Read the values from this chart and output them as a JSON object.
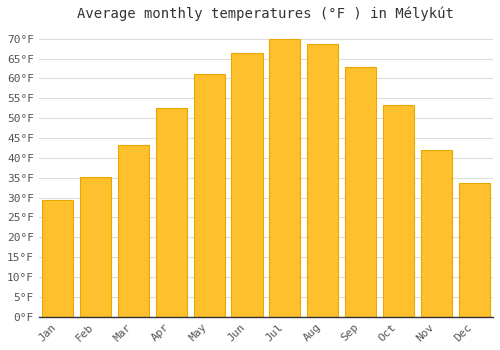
{
  "title": "Average monthly temperatures (°F ) in Mélykút",
  "months": [
    "Jan",
    "Feb",
    "Mar",
    "Apr",
    "May",
    "Jun",
    "Jul",
    "Aug",
    "Sep",
    "Oct",
    "Nov",
    "Dec"
  ],
  "values": [
    29.3,
    35.1,
    43.3,
    52.5,
    61.2,
    66.3,
    69.8,
    68.7,
    63.0,
    53.2,
    42.1,
    33.8
  ],
  "bar_color": "#FFC02D",
  "bar_edge_color": "#E8A800",
  "background_color": "#FFFFFF",
  "grid_color": "#DDDDDD",
  "yticks": [
    0,
    5,
    10,
    15,
    20,
    25,
    30,
    35,
    40,
    45,
    50,
    55,
    60,
    65,
    70
  ],
  "ylim": [
    0,
    73
  ],
  "title_fontsize": 10,
  "tick_fontsize": 8,
  "font_family": "monospace",
  "bar_width": 0.82
}
